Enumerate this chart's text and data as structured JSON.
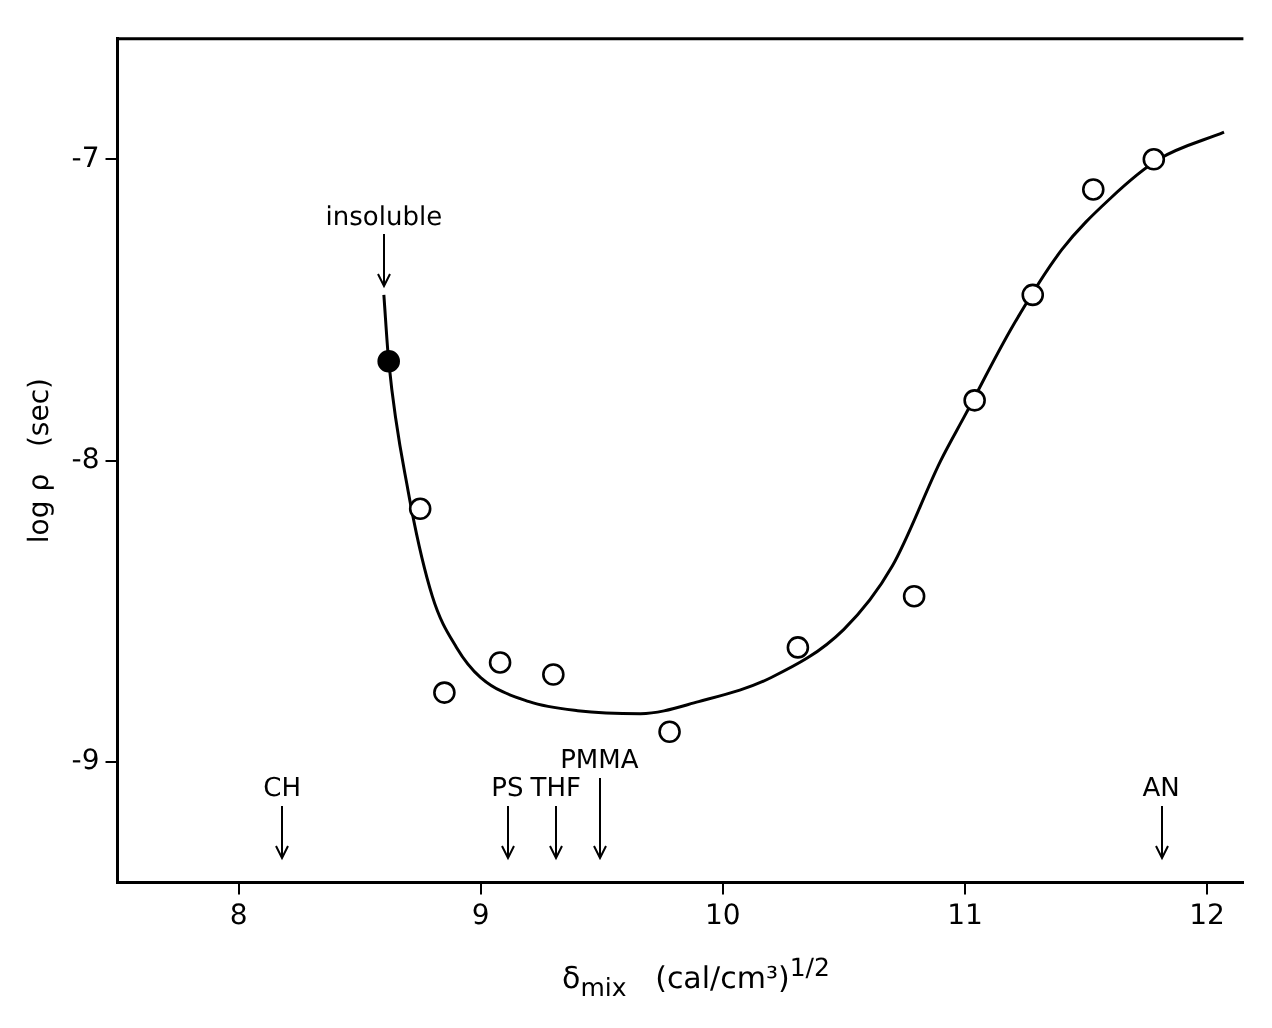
{
  "chart_data": {
    "type": "scatter",
    "xlabel": "δ$_{mix}$   (cal/cm³)$^{1/2}$",
    "ylabel": "log ρ   (sec)",
    "xlim": [
      7.5,
      12.15
    ],
    "ylim": [
      -9.4,
      -6.6
    ],
    "xticks": [
      8,
      9,
      10,
      11,
      12
    ],
    "yticks": [
      -9,
      -8,
      -7
    ],
    "grid": false,
    "legend": false,
    "series": [
      {
        "type": "scatter",
        "color": "#000000",
        "marker": "circle",
        "x": [
          8.75,
          8.85,
          9.08,
          9.3,
          9.78,
          10.31,
          10.79,
          11.04,
          11.28,
          11.53,
          11.78
        ],
        "values": [
          -8.16,
          -8.77,
          -8.67,
          -8.71,
          -8.9,
          -8.62,
          -8.45,
          -7.8,
          -7.45,
          -7.1,
          -7.0
        ]
      },
      {
        "type": "scatter",
        "color": "#000000",
        "marker": "circle",
        "x": [
          8.62
        ],
        "values": [
          -7.67
        ]
      },
      {
        "type": "line",
        "color": "#000000",
        "marker": "none",
        "line_style": "solid",
        "x": [
          8.6,
          8.62,
          8.7,
          8.8,
          8.9,
          9.0,
          9.2,
          9.4,
          9.66,
          9.9,
          10.2,
          10.5,
          10.7,
          10.9,
          11.0,
          11.2,
          11.4,
          11.6,
          11.8,
          12.07
        ],
        "values": [
          -7.45,
          -7.67,
          -8.1,
          -8.45,
          -8.62,
          -8.72,
          -8.8,
          -8.83,
          -8.84,
          -8.8,
          -8.72,
          -8.56,
          -8.35,
          -8.0,
          -7.85,
          -7.55,
          -7.3,
          -7.13,
          -7.0,
          -6.91
        ]
      }
    ],
    "annotations": [
      {
        "text": "insoluble",
        "x": 8.6,
        "y": -7.45
      }
    ],
    "ref_lines": [
      {
        "axis": "x",
        "value": 8.18,
        "label": "CH"
      },
      {
        "axis": "x",
        "value": 9.11,
        "label": "PS"
      },
      {
        "axis": "x",
        "value": 9.31,
        "label": "THF"
      },
      {
        "axis": "x",
        "value": 9.49,
        "label": "PMMA"
      },
      {
        "axis": "x",
        "value": 11.81,
        "label": "AN"
      }
    ]
  }
}
